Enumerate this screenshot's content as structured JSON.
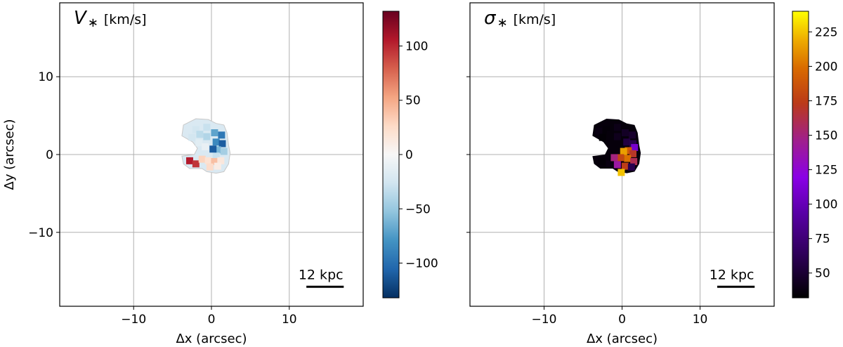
{
  "chart_data": [
    {
      "type": "heatmap",
      "title_symbol": "V",
      "title_sub": "∗",
      "title_unit": "[km/s]",
      "xlabel": "Δx (arcsec)",
      "ylabel": "Δy (arcsec)",
      "xlim": [
        -19.5,
        19.5
      ],
      "ylim": [
        -19.5,
        19.5
      ],
      "xticks": [
        -10,
        0,
        10
      ],
      "xtick_labels": [
        "−10",
        "0",
        "10"
      ],
      "yticks": [
        10,
        0,
        -10
      ],
      "ytick_labels": [
        "10",
        "0",
        "−10"
      ],
      "grid": true,
      "scalebar": {
        "label": "12 kpc",
        "x_range": [
          12.2,
          17.0
        ],
        "y": -17.0
      },
      "colorbar": {
        "colormap": "RdBu_r",
        "range": [
          -132,
          132
        ],
        "ticks": [
          100,
          50,
          0,
          -50,
          -100
        ],
        "tick_labels": [
          "100",
          "50",
          "0",
          "−50",
          "−100"
        ]
      },
      "pixels": [
        {
          "x": -2.0,
          "y": 3.2,
          "value": -25
        },
        {
          "x": -3.0,
          "y": 3.0,
          "value": -20
        },
        {
          "x": -0.6,
          "y": 3.5,
          "value": -30
        },
        {
          "x": -1.5,
          "y": 2.6,
          "value": -35
        },
        {
          "x": -2.5,
          "y": 2.2,
          "value": -25
        },
        {
          "x": -0.6,
          "y": 2.3,
          "value": -40
        },
        {
          "x": 0.4,
          "y": 2.8,
          "value": -70
        },
        {
          "x": 1.3,
          "y": 2.5,
          "value": -95
        },
        {
          "x": 0.6,
          "y": 1.6,
          "value": -85
        },
        {
          "x": 1.4,
          "y": 1.4,
          "value": -110
        },
        {
          "x": 0.8,
          "y": 0.6,
          "value": -60
        },
        {
          "x": 1.6,
          "y": 0.4,
          "value": -45
        },
        {
          "x": 0.6,
          "y": -0.2,
          "value": -30
        },
        {
          "x": -1.6,
          "y": 1.5,
          "value": -15
        },
        {
          "x": -0.8,
          "y": 1.0,
          "value": -10
        },
        {
          "x": 0.2,
          "y": 0.7,
          "value": -110
        },
        {
          "x": -2.8,
          "y": -0.8,
          "value": 105
        },
        {
          "x": -2.0,
          "y": -1.2,
          "value": 95
        },
        {
          "x": -1.2,
          "y": -0.6,
          "value": 30
        },
        {
          "x": -0.4,
          "y": -0.8,
          "value": 20
        },
        {
          "x": 0.4,
          "y": -0.9,
          "value": 40
        },
        {
          "x": 1.2,
          "y": -0.8,
          "value": 15
        },
        {
          "x": -0.2,
          "y": -1.6,
          "value": 25
        },
        {
          "x": 0.8,
          "y": -1.5,
          "value": 10
        }
      ]
    },
    {
      "type": "heatmap",
      "title_symbol": "σ",
      "title_sub": "∗",
      "title_unit": "[km/s]",
      "xlabel": "Δx (arcsec)",
      "ylabel": "",
      "xlim": [
        -19.5,
        19.5
      ],
      "ylim": [
        -19.5,
        19.5
      ],
      "xticks": [
        -10,
        0,
        10
      ],
      "xtick_labels": [
        "−10",
        "0",
        "10"
      ],
      "yticks": [
        10,
        0,
        -10
      ],
      "grid": true,
      "scalebar": {
        "label": "12 kpc",
        "x_range": [
          12.2,
          17.0
        ],
        "y": -17.0
      },
      "colorbar": {
        "colormap": "gnuplot",
        "range": [
          32,
          240
        ],
        "ticks": [
          225,
          200,
          175,
          150,
          125,
          100,
          75,
          50
        ],
        "tick_labels": [
          "225",
          "200",
          "175",
          "150",
          "125",
          "100",
          "75",
          "50"
        ]
      },
      "pixels": [
        {
          "x": -2.0,
          "y": 3.2,
          "value": 35
        },
        {
          "x": -3.0,
          "y": 3.0,
          "value": 38
        },
        {
          "x": -0.6,
          "y": 3.5,
          "value": 40
        },
        {
          "x": -1.5,
          "y": 2.6,
          "value": 36
        },
        {
          "x": -2.5,
          "y": 2.2,
          "value": 34
        },
        {
          "x": -0.6,
          "y": 2.3,
          "value": 42
        },
        {
          "x": 0.4,
          "y": 2.8,
          "value": 45
        },
        {
          "x": 1.3,
          "y": 2.5,
          "value": 48
        },
        {
          "x": 0.6,
          "y": 1.6,
          "value": 55
        },
        {
          "x": 1.4,
          "y": 1.4,
          "value": 60
        },
        {
          "x": 1.6,
          "y": 0.9,
          "value": 110
        },
        {
          "x": 0.8,
          "y": 0.5,
          "value": 190
        },
        {
          "x": 0.2,
          "y": 0.4,
          "value": 215
        },
        {
          "x": 1.4,
          "y": 0.1,
          "value": 170
        },
        {
          "x": -0.2,
          "y": -0.4,
          "value": 180
        },
        {
          "x": 0.7,
          "y": -0.5,
          "value": 200
        },
        {
          "x": 1.5,
          "y": -0.9,
          "value": 160
        },
        {
          "x": -2.6,
          "y": -0.9,
          "value": 35
        },
        {
          "x": -1.6,
          "y": -1.2,
          "value": 38
        },
        {
          "x": -0.6,
          "y": -1.3,
          "value": 140
        },
        {
          "x": 0.4,
          "y": -1.5,
          "value": 175
        },
        {
          "x": 1.2,
          "y": -1.6,
          "value": 60
        },
        {
          "x": -0.1,
          "y": -2.3,
          "value": 225
        },
        {
          "x": -1.0,
          "y": -0.4,
          "value": 150
        }
      ]
    }
  ],
  "colors": {
    "grid": "#b0b0b0",
    "axes": "#000000",
    "mask_outline": "#c8c8c8"
  }
}
